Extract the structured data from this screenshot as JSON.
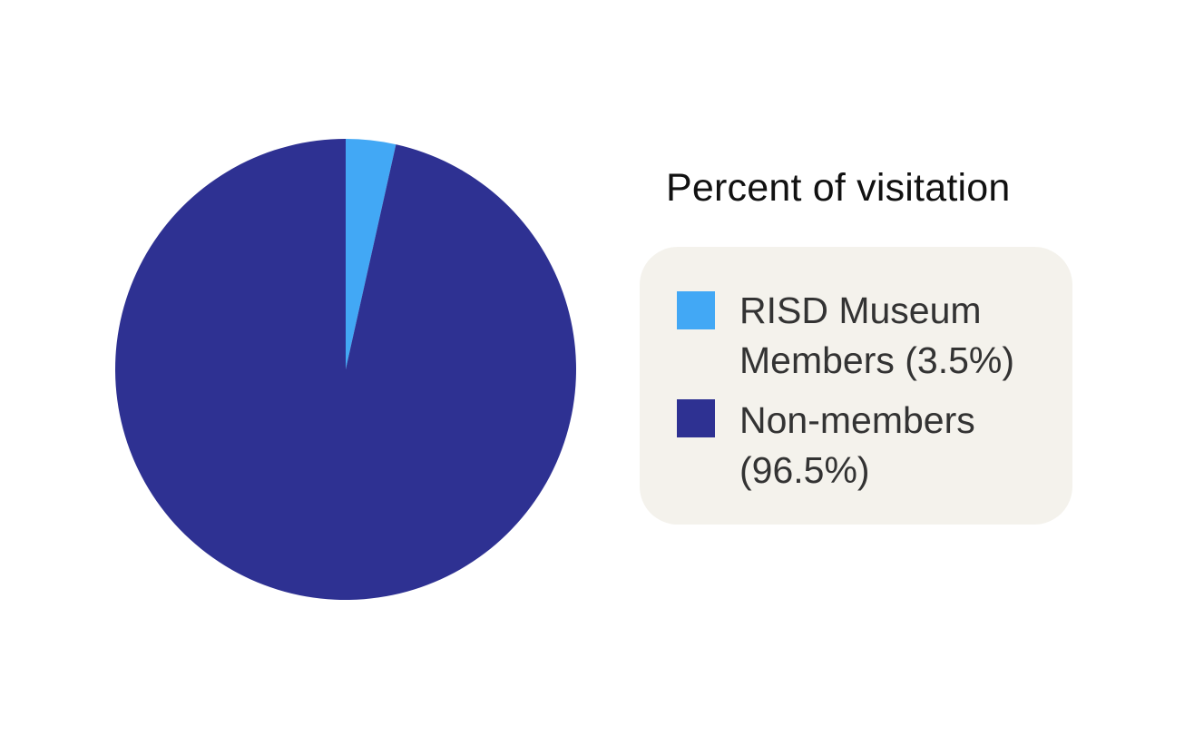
{
  "chart_data": {
    "type": "pie",
    "title": "Percent of visitation",
    "categories": [
      "RISD Museum Members",
      "Non-members"
    ],
    "values": [
      3.5,
      96.5
    ],
    "colors": [
      "#42a8f5",
      "#2e3192"
    ],
    "legend_position": "right",
    "start_angle": "top, clockwise"
  },
  "legend": {
    "title": "Percent of visitation",
    "items": [
      {
        "line1": "RISD Museum",
        "line2": "Members (3.5%)",
        "color": "#42a8f5"
      },
      {
        "line1": "Non-members",
        "line2": "(96.5%)",
        "color": "#2e3192"
      }
    ]
  }
}
